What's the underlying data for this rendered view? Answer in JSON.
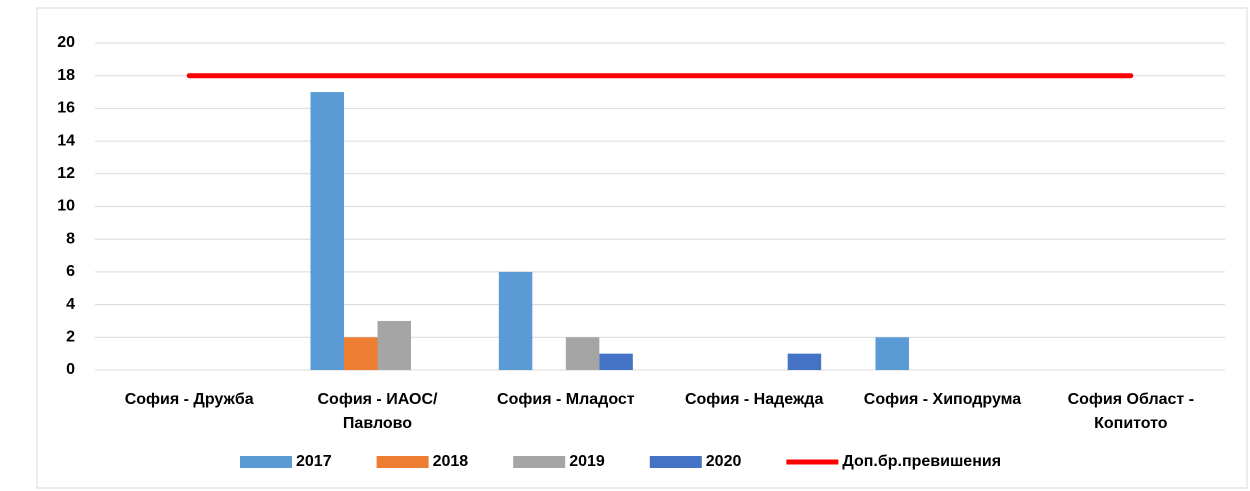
{
  "chart_data": {
    "type": "bar",
    "categories": [
      "София - Дружба",
      "София - ИАОС/Павлово",
      "София - Младост",
      "София - Надежда",
      "София - Хиподрума",
      "София Област - Копитото"
    ],
    "series": [
      {
        "name": "2017",
        "color": "#5b9bd5",
        "type": "bar",
        "values": [
          0,
          17,
          6,
          0,
          2,
          0
        ]
      },
      {
        "name": "2018",
        "color": "#ed7d31",
        "type": "bar",
        "values": [
          0,
          2,
          0,
          0,
          0,
          0
        ]
      },
      {
        "name": "2019",
        "color": "#a5a5a5",
        "type": "bar",
        "values": [
          0,
          3,
          2,
          0,
          0,
          0
        ]
      },
      {
        "name": "2020",
        "color": "#4472c4",
        "type": "bar",
        "values": [
          0,
          0,
          1,
          1,
          0,
          0
        ]
      },
      {
        "name": "Доп.бр.превишения",
        "color": "#ff0000",
        "type": "line",
        "values": [
          18,
          18,
          18,
          18,
          18,
          18
        ]
      }
    ],
    "ylim": [
      0,
      20
    ],
    "yticks": [
      0,
      2,
      4,
      6,
      8,
      10,
      12,
      14,
      16,
      18,
      20
    ],
    "grid": true,
    "legend": "bottom"
  }
}
